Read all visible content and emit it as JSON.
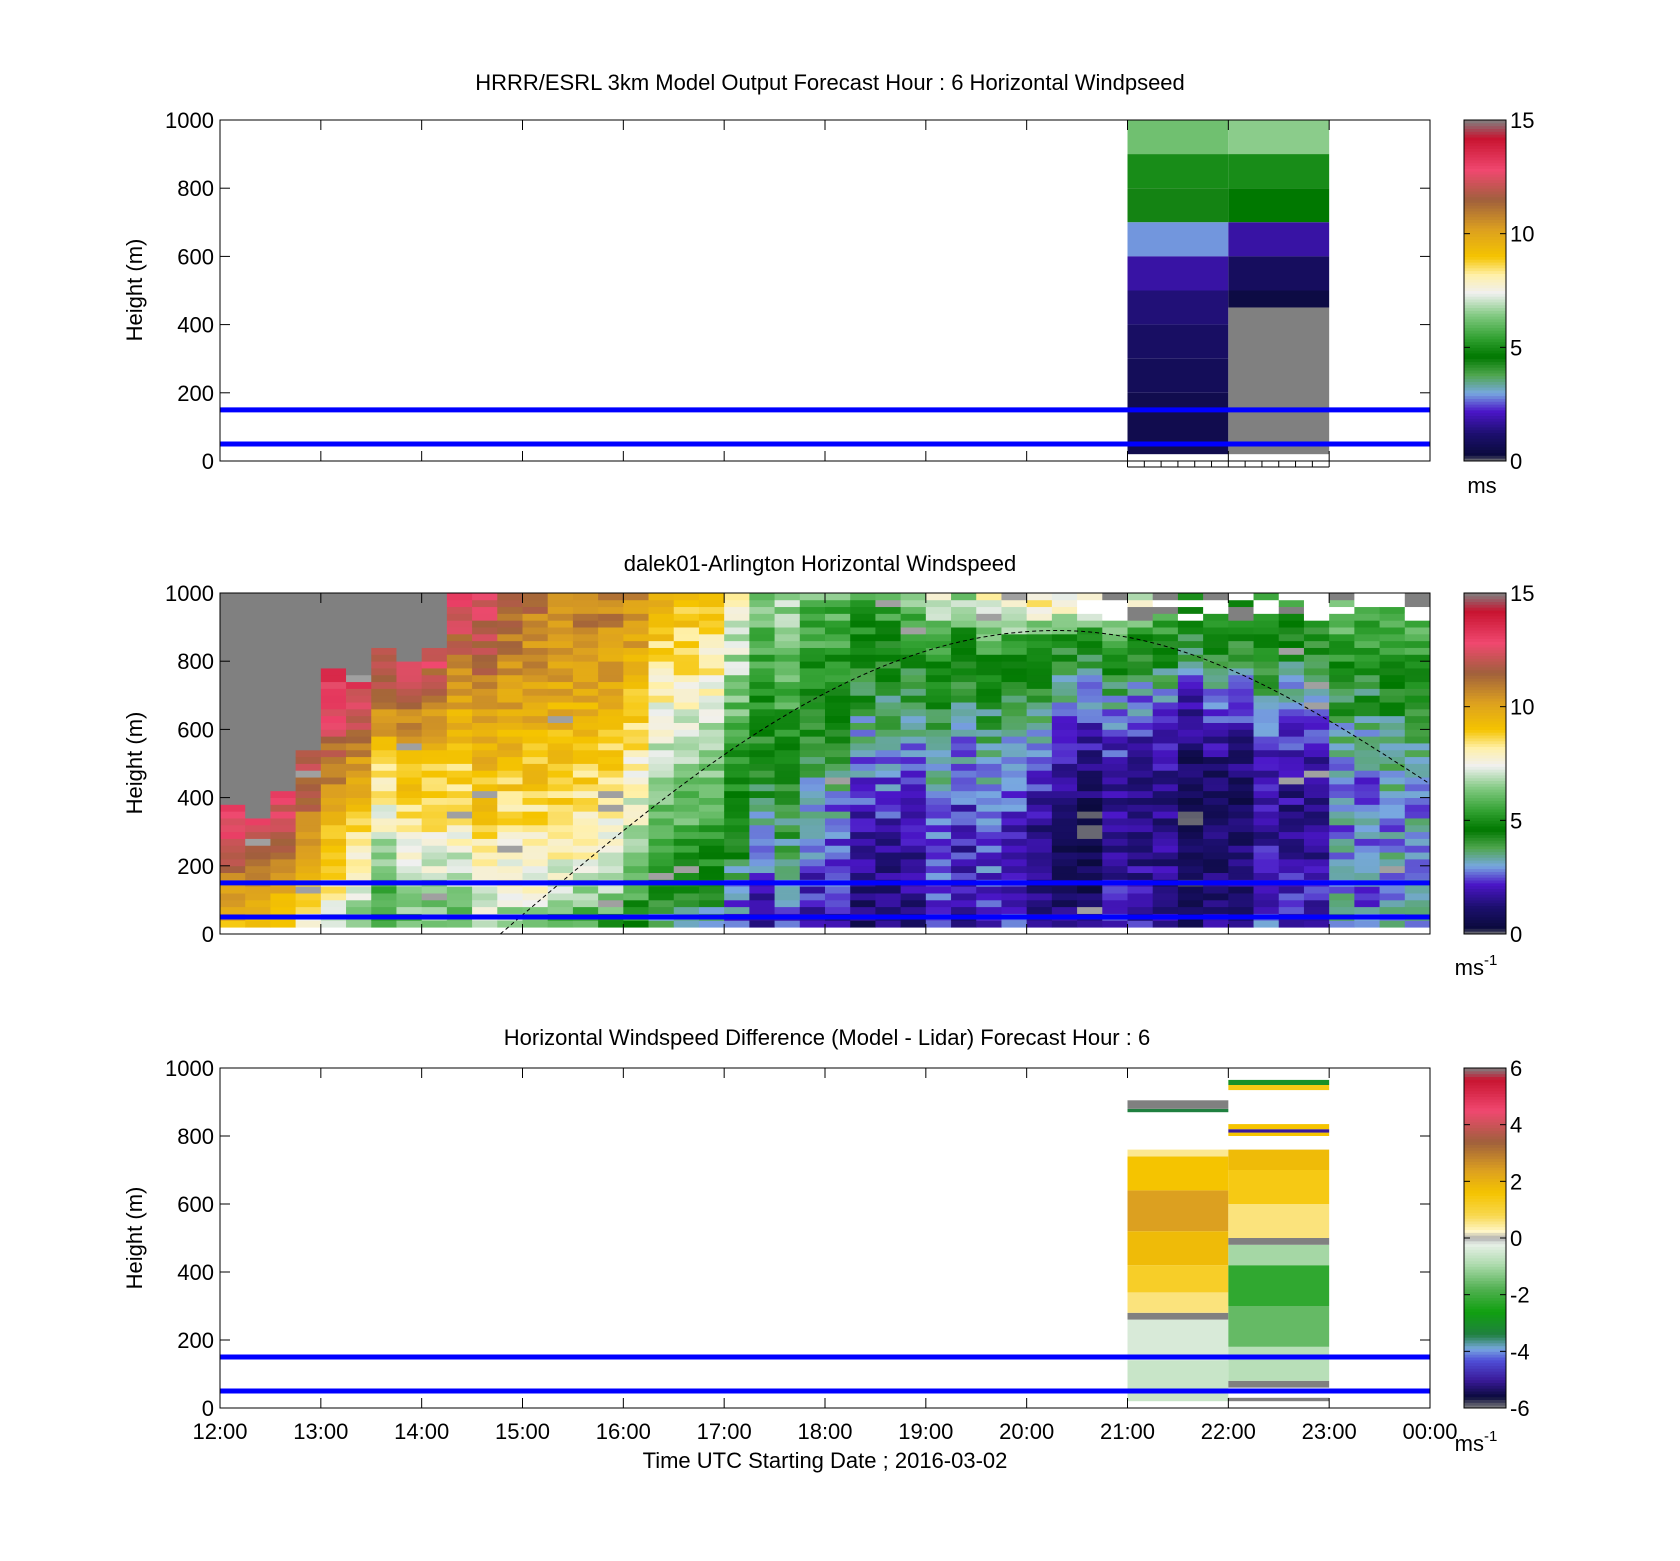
{
  "x_axis": {
    "label": "Time UTC  Starting Date ; 2016-03-02",
    "ticks": [
      "12:00",
      "13:00",
      "14:00",
      "15:00",
      "16:00",
      "17:00",
      "18:00",
      "19:00",
      "20:00",
      "21:00",
      "22:00",
      "23:00",
      "00:00"
    ],
    "range_hours": [
      12,
      24
    ]
  },
  "reference_lines_m": [
    50,
    150
  ],
  "reference_line_color": "#0000ff",
  "chart_data": [
    {
      "type": "heatmap",
      "title": "HRRR/ESRL 3km Model Output   Forecast Hour : 6 Horizontal Windpseed",
      "ylabel": "Height (m)",
      "ylim": [
        0,
        1000
      ],
      "yticks": [
        "0",
        "200",
        "400",
        "600",
        "800",
        "1000"
      ],
      "colorbar": {
        "ticks": [
          "0",
          "5",
          "10",
          "15"
        ],
        "range": [
          0,
          15
        ],
        "unit": "ms"
      },
      "columns": [
        {
          "time_range": [
            21,
            22
          ],
          "levels": [
            {
              "z": [
                900,
                1000
              ],
              "v": 6.2
            },
            {
              "z": [
                800,
                900
              ],
              "v": 5.0
            },
            {
              "z": [
                700,
                800
              ],
              "v": 4.4
            },
            {
              "z": [
                600,
                700
              ],
              "v": 2.9
            },
            {
              "z": [
                500,
                600
              ],
              "v": 1.8
            },
            {
              "z": [
                400,
                500
              ],
              "v": 1.3
            },
            {
              "z": [
                300,
                400
              ],
              "v": 1.0
            },
            {
              "z": [
                200,
                300
              ],
              "v": 0.8
            },
            {
              "z": [
                20,
                200
              ],
              "v": 0.6
            }
          ]
        },
        {
          "time_range": [
            22,
            23
          ],
          "levels": [
            {
              "z": [
                900,
                1000
              ],
              "v": 6.5
            },
            {
              "z": [
                800,
                900
              ],
              "v": 5.0
            },
            {
              "z": [
                700,
                800
              ],
              "v": 4.6
            },
            {
              "z": [
                600,
                700
              ],
              "v": 1.8
            },
            {
              "z": [
                500,
                600
              ],
              "v": 0.9
            },
            {
              "z": [
                450,
                500
              ],
              "v": 0.4
            },
            {
              "z": [
                20,
                450
              ],
              "v": -1
            }
          ]
        }
      ]
    },
    {
      "type": "heatmap",
      "title": "dalek01-Arlington  Horizontal Windspeed",
      "ylabel": "Height (m)",
      "ylim": [
        0,
        1000
      ],
      "yticks": [
        "0",
        "200",
        "400",
        "600",
        "800",
        "1000"
      ],
      "colorbar": {
        "ticks": [
          "0",
          "5",
          "10",
          "15"
        ],
        "range": [
          0,
          15
        ],
        "unit": "ms",
        "unit_sup": "-1"
      },
      "time_resolution_hours": 0.25,
      "height_resolution_m": 20,
      "boundary_layer_curve": {
        "start_hour": 14.78,
        "peak_hour": 20.3,
        "peak_height_m": 890,
        "end_hour": 24,
        "end_height_m": 440
      },
      "missing_top_m": [
        {
          "t": 12.0,
          "top": 370
        },
        {
          "t": 12.25,
          "top": 330
        },
        {
          "t": 12.5,
          "top": 410
        },
        {
          "t": 12.75,
          "top": 540
        },
        {
          "t": 13.0,
          "top": 780
        },
        {
          "t": 13.25,
          "top": 760
        },
        {
          "t": 13.5,
          "top": 830
        },
        {
          "t": 13.75,
          "top": 800
        },
        {
          "t": 14.0,
          "top": 830
        },
        {
          "t": 14.25,
          "top": 1000
        },
        {
          "t": 14.5,
          "top": 1000
        }
      ],
      "profiles_m_s": [
        {
          "t": 12.0,
          "v": [
            9,
            10,
            12,
            13,
            14,
            14,
            14,
            14,
            13
          ]
        },
        {
          "t": 12.5,
          "v": [
            9,
            10,
            12,
            13,
            14,
            14,
            14,
            14,
            13
          ]
        },
        {
          "t": 13.0,
          "v": [
            7,
            8,
            9,
            10,
            11,
            12,
            13,
            13.5,
            13.5
          ]
        },
        {
          "t": 13.5,
          "v": [
            5.5,
            6.5,
            7.5,
            8.5,
            9.5,
            11,
            12.5,
            13.5,
            13.5
          ]
        },
        {
          "t": 14.0,
          "v": [
            5.5,
            6,
            7,
            7.5,
            8.5,
            9.5,
            11,
            12.5,
            13.5
          ]
        },
        {
          "t": 14.5,
          "v": [
            6,
            7,
            8,
            8.5,
            9,
            9.5,
            10.5,
            11.5,
            12.5
          ]
        },
        {
          "t": 15.0,
          "v": [
            6.5,
            7.5,
            8,
            8.5,
            9,
            9.5,
            10,
            10.5,
            11
          ]
        },
        {
          "t": 15.5,
          "v": [
            5.5,
            7,
            8,
            8.5,
            9,
            9.5,
            10,
            10.5,
            11
          ]
        },
        {
          "t": 16.0,
          "v": [
            5,
            6,
            7,
            7.5,
            8,
            8.5,
            9.5,
            10,
            10.5
          ]
        },
        {
          "t": 16.5,
          "v": [
            3.5,
            4.5,
            5.5,
            6.5,
            7,
            7.5,
            8.5,
            9,
            9.5
          ]
        },
        {
          "t": 17.0,
          "v": [
            2.5,
            3.5,
            4.5,
            5,
            5.5,
            6,
            7,
            7.5,
            8
          ]
        },
        {
          "t": 17.5,
          "v": [
            2,
            2.5,
            3.5,
            4,
            4.5,
            5,
            5.5,
            6,
            6.5
          ]
        },
        {
          "t": 18.0,
          "v": [
            1.5,
            1.8,
            2.2,
            2.6,
            3.2,
            3.8,
            4.5,
            5,
            5.5
          ]
        },
        {
          "t": 18.5,
          "v": [
            1.2,
            1.5,
            1.8,
            2.2,
            2.8,
            3.5,
            4.2,
            4.8,
            5.5
          ]
        },
        {
          "t": 19.0,
          "v": [
            1.5,
            1.8,
            2,
            2.4,
            3,
            3.5,
            4.2,
            5,
            6.5
          ]
        },
        {
          "t": 19.5,
          "v": [
            1.8,
            2,
            2.2,
            2.4,
            2.8,
            3.2,
            4,
            5,
            7
          ]
        },
        {
          "t": 20.0,
          "v": [
            1.8,
            1.6,
            1.5,
            1.8,
            2.2,
            3,
            4,
            5,
            8
          ]
        },
        {
          "t": 20.5,
          "v": [
            1.6,
            1.3,
            1,
            1.4,
            2,
            2.8,
            3.8,
            5,
            8.5
          ]
        },
        {
          "t": 21.0,
          "v": [
            1.5,
            1.3,
            1,
            0.9,
            1.2,
            1.8,
            3,
            4.5,
            7
          ]
        },
        {
          "t": 21.5,
          "v": [
            1.5,
            1.4,
            1.2,
            1.2,
            1.4,
            2,
            3,
            4.5,
            6
          ]
        },
        {
          "t": 22.0,
          "v": [
            1.5,
            1.3,
            1.1,
            0.9,
            1.2,
            2,
            3,
            4.5,
            5
          ]
        },
        {
          "t": 22.5,
          "v": [
            2,
            1.8,
            1.5,
            1.3,
            1.5,
            2.2,
            3.2,
            4.5,
            5
          ]
        },
        {
          "t": 23.0,
          "v": [
            2.8,
            2.6,
            2.4,
            2.2,
            2.2,
            2.8,
            3.8,
            5,
            5.5
          ]
        },
        {
          "t": 23.5,
          "v": [
            2.5,
            2.5,
            2.5,
            2.5,
            2.8,
            3.2,
            4,
            5,
            5.5
          ]
        },
        {
          "t": 24.0,
          "v": [
            2.5,
            2.5,
            2.5,
            2.5,
            3,
            3.5,
            4.5,
            5,
            5.5
          ]
        }
      ],
      "profile_heights_m": [
        20,
        120,
        240,
        360,
        480,
        600,
        720,
        840,
        960
      ]
    },
    {
      "type": "heatmap",
      "title": "Horizontal Windspeed Difference (Model - Lidar) Forecast Hour : 6",
      "xlabel": "Time UTC  Starting Date ; 2016-03-02",
      "ylabel": "Height (m)",
      "ylim": [
        0,
        1000
      ],
      "yticks": [
        "0",
        "200",
        "400",
        "600",
        "800",
        "1000"
      ],
      "colorbar": {
        "ticks": [
          "-6",
          "-4",
          "-2",
          "0",
          "2",
          "4",
          "6"
        ],
        "range": [
          -6,
          6
        ],
        "unit": "ms",
        "unit_sup": "-1"
      },
      "columns": [
        {
          "time_range": [
            21,
            22
          ],
          "levels": [
            {
              "z": [
                20,
                140
              ],
              "v": -0.6
            },
            {
              "z": [
                140,
                260
              ],
              "v": -0.4
            },
            {
              "z": [
                260,
                280
              ],
              "v": -9
            },
            {
              "z": [
                280,
                340
              ],
              "v": 0.6
            },
            {
              "z": [
                340,
                420
              ],
              "v": 1.2
            },
            {
              "z": [
                420,
                520
              ],
              "v": 1.8
            },
            {
              "z": [
                520,
                640
              ],
              "v": 2.4
            },
            {
              "z": [
                640,
                740
              ],
              "v": 1.6
            },
            {
              "z": [
                740,
                760
              ],
              "v": 0.5
            },
            {
              "z": [
                870,
                880
              ],
              "v": -3.4
            },
            {
              "z": [
                880,
                905
              ],
              "v": -9
            }
          ]
        },
        {
          "time_range": [
            22,
            23
          ],
          "levels": [
            {
              "z": [
                20,
                30
              ],
              "v": -9
            },
            {
              "z": [
                60,
                80
              ],
              "v": -9
            },
            {
              "z": [
                80,
                180
              ],
              "v": -0.8
            },
            {
              "z": [
                180,
                300
              ],
              "v": -1.6
            },
            {
              "z": [
                300,
                420
              ],
              "v": -2.2
            },
            {
              "z": [
                420,
                480
              ],
              "v": -1
            },
            {
              "z": [
                480,
                500
              ],
              "v": -9
            },
            {
              "z": [
                500,
                600
              ],
              "v": 0.6
            },
            {
              "z": [
                600,
                700
              ],
              "v": 1.4
            },
            {
              "z": [
                700,
                760
              ],
              "v": 1.8
            },
            {
              "z": [
                800,
                810
              ],
              "v": 1.6
            },
            {
              "z": [
                810,
                820
              ],
              "v": -5
            },
            {
              "z": [
                820,
                835
              ],
              "v": 1.6
            },
            {
              "z": [
                935,
                950
              ],
              "v": 1.4
            },
            {
              "z": [
                950,
                965
              ],
              "v": -3
            }
          ]
        }
      ]
    }
  ]
}
